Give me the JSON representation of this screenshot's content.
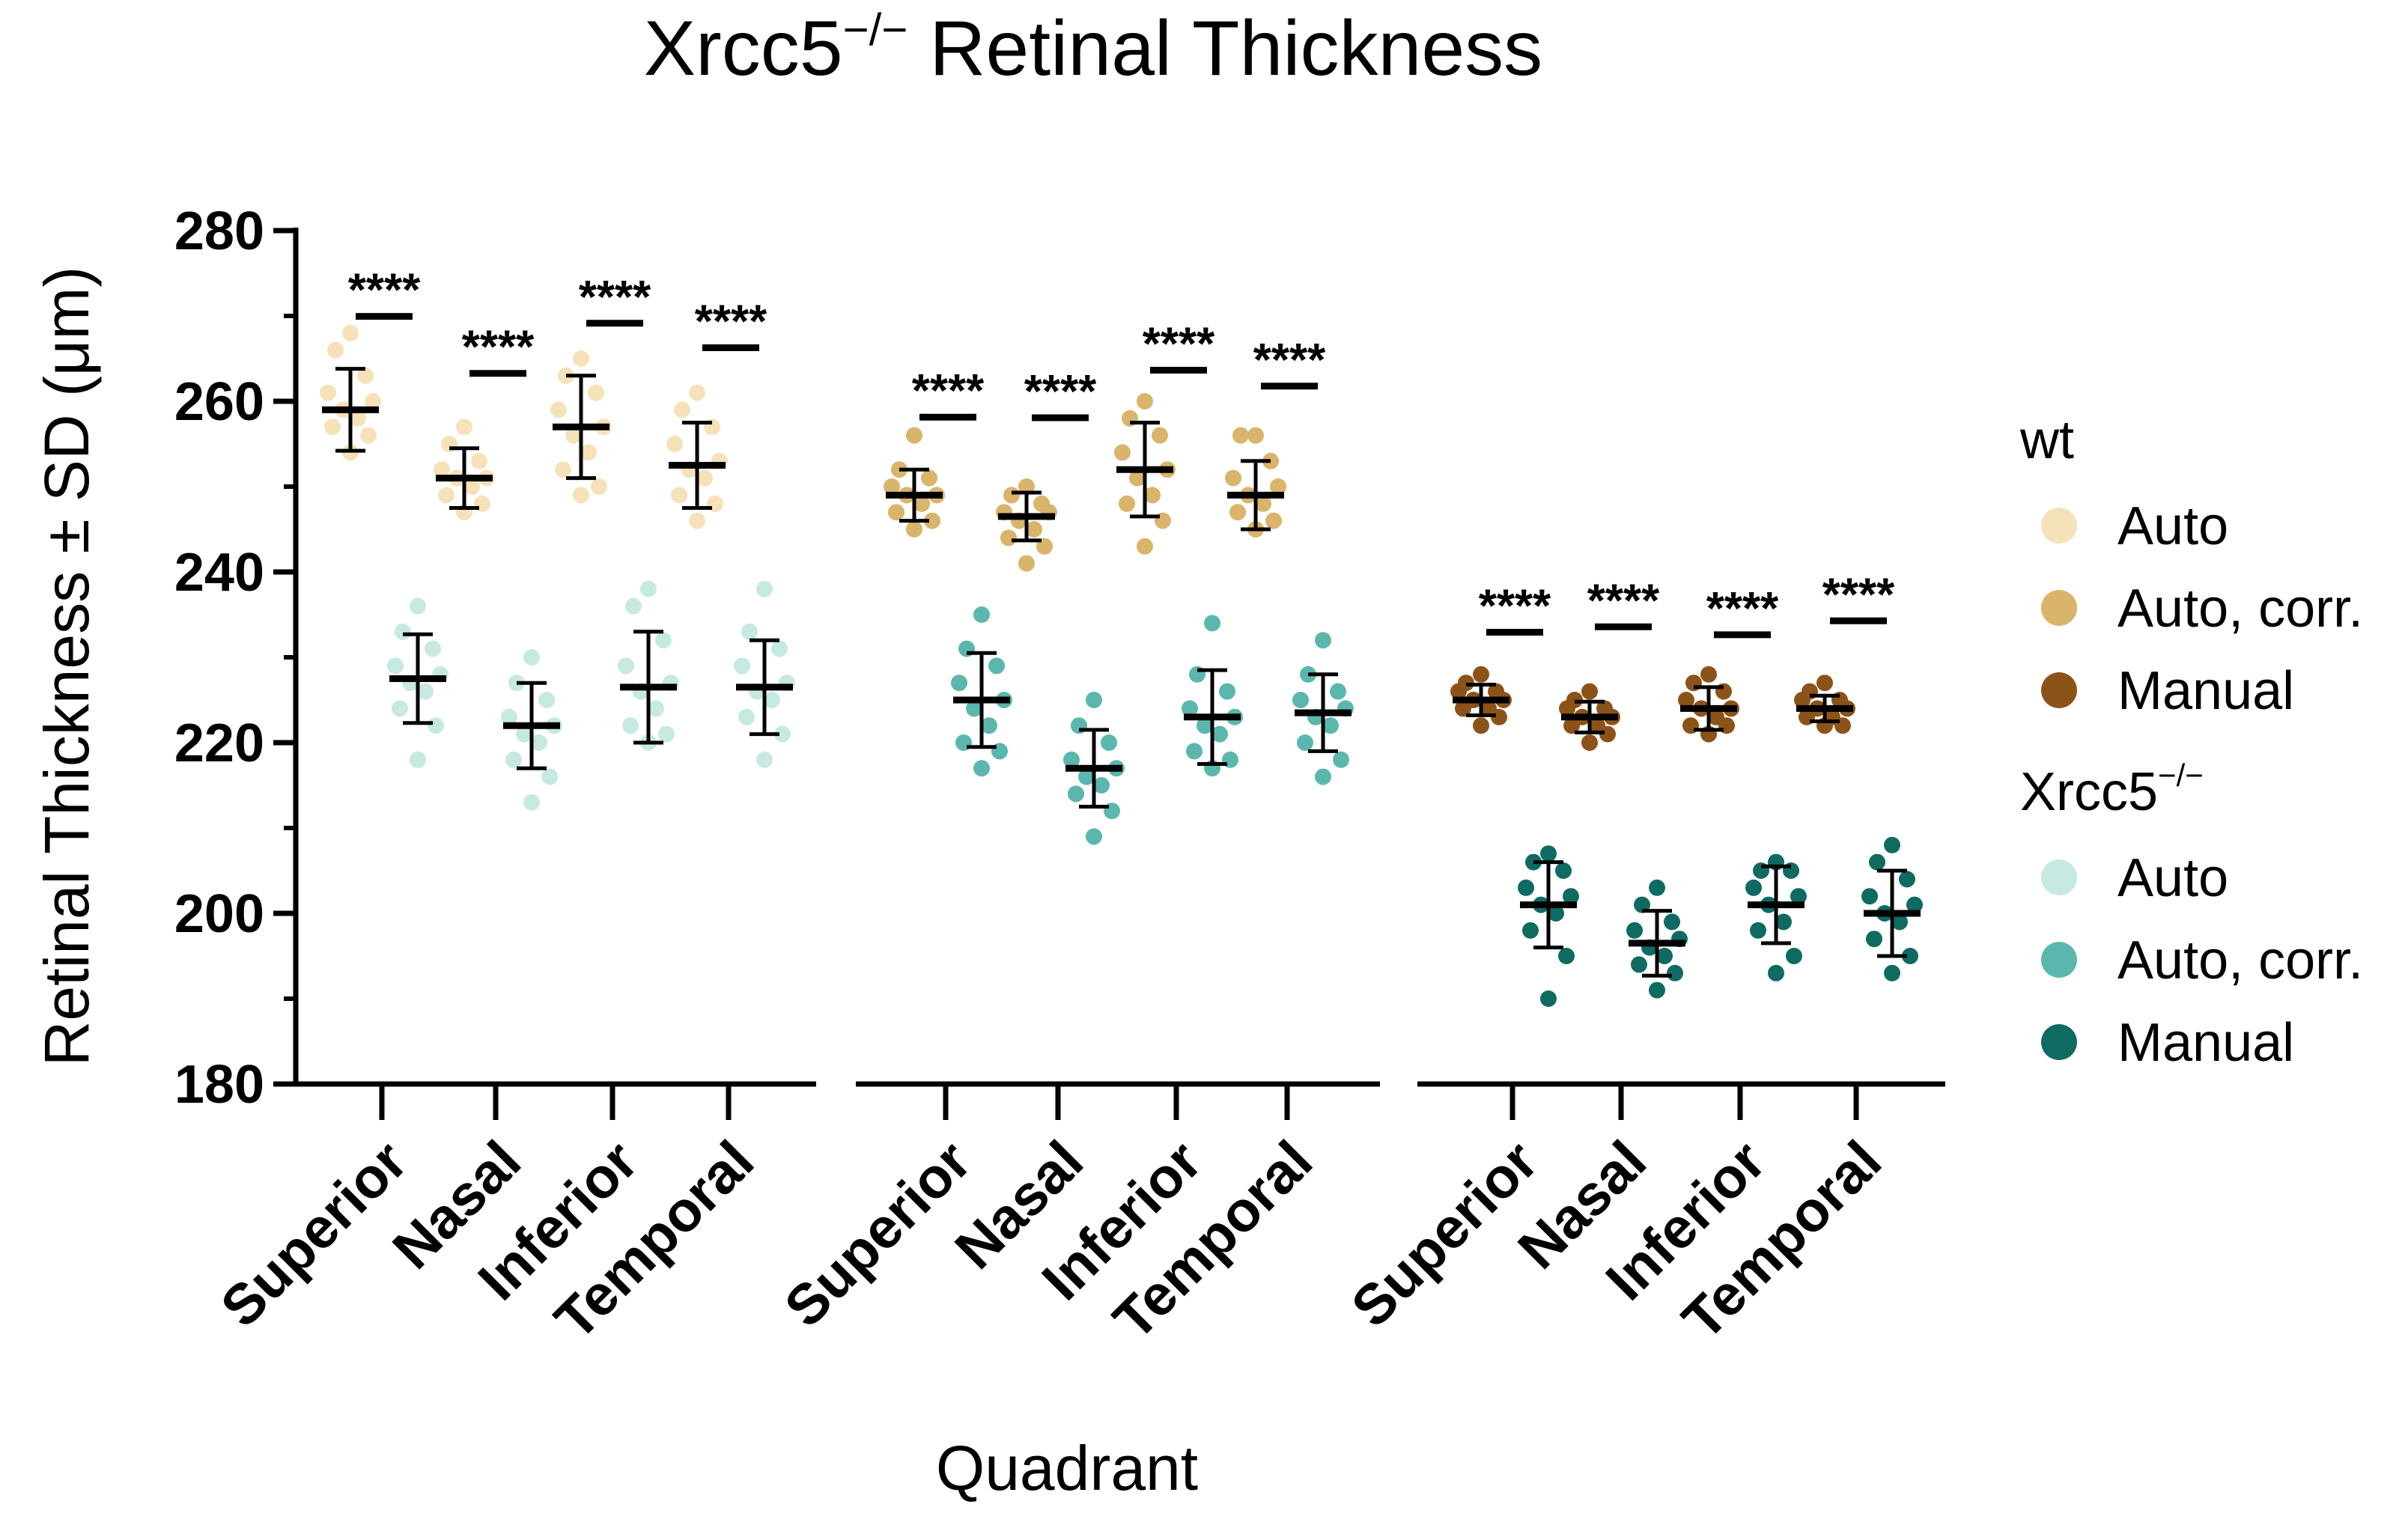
{
  "chart_data": {
    "type": "scatter",
    "title": "Xrcc5",
    "title_superscript": "−/−",
    "title_suffix": " Retinal Thickness",
    "ylabel": "Retinal Thickness ± SD (μm)",
    "xlabel": "Quadrant",
    "ylim": [
      180,
      280
    ],
    "yticks": [
      180,
      200,
      220,
      240,
      260,
      280
    ],
    "quadrants": [
      "Superior",
      "Nasal",
      "Inferior",
      "Temporal"
    ],
    "significance_label": "****",
    "legend": {
      "groups": [
        {
          "title": "wt",
          "superscript": "",
          "entries": [
            {
              "label": "Auto",
              "color": "#F6E2B8"
            },
            {
              "label": "Auto, corr.",
              "color": "#D9B46A"
            },
            {
              "label": "Manual",
              "color": "#8C5318"
            }
          ]
        },
        {
          "title": "Xrcc5",
          "superscript": "−/−",
          "entries": [
            {
              "label": "Auto",
              "color": "#C6E9E1"
            },
            {
              "label": "Auto, corr.",
              "color": "#5BB7AD"
            },
            {
              "label": "Manual",
              "color": "#0F6B62"
            }
          ]
        }
      ]
    },
    "panels": [
      {
        "method": "Auto",
        "wt_color": "#F6E2B8",
        "ko_color": "#C6E9E1",
        "groups": [
          {
            "quadrant": "Superior",
            "wt": {
              "mean": 259,
              "sd": 4.8,
              "points": [
                268,
                266,
                263,
                261,
                260,
                259,
                258,
                257,
                256,
                254
              ]
            },
            "ko": {
              "mean": 227.5,
              "sd": 5.2,
              "points": [
                236,
                233,
                231,
                229,
                228,
                227,
                226,
                224,
                222,
                218
              ]
            }
          },
          {
            "quadrant": "Nasal",
            "wt": {
              "mean": 251,
              "sd": 3.5,
              "points": [
                257,
                255,
                253,
                252,
                251,
                251,
                250,
                249,
                248,
                247
              ]
            },
            "ko": {
              "mean": 222,
              "sd": 5,
              "points": [
                230,
                227,
                225,
                223,
                222,
                221,
                220,
                218,
                216,
                213
              ]
            }
          },
          {
            "quadrant": "Inferior",
            "wt": {
              "mean": 257,
              "sd": 6,
              "points": [
                265,
                263,
                261,
                259,
                257,
                256,
                254,
                252,
                250,
                249
              ]
            },
            "ko": {
              "mean": 226.5,
              "sd": 6.5,
              "points": [
                238,
                236,
                232,
                229,
                227,
                226,
                224,
                222,
                221,
                220
              ]
            }
          },
          {
            "quadrant": "Temporal",
            "wt": {
              "mean": 252.5,
              "sd": 5,
              "points": [
                261,
                259,
                257,
                255,
                253,
                252,
                251,
                249,
                248,
                246
              ]
            },
            "ko": {
              "mean": 226.5,
              "sd": 5.5,
              "points": [
                238,
                233,
                231,
                229,
                227,
                226,
                225,
                223,
                221,
                218
              ]
            }
          }
        ]
      },
      {
        "method": "Auto, corr.",
        "wt_color": "#D9B46A",
        "ko_color": "#5BB7AD",
        "groups": [
          {
            "quadrant": "Superior",
            "wt": {
              "mean": 249,
              "sd": 3,
              "points": [
                256,
                252,
                251,
                250,
                249,
                249,
                248,
                247,
                246,
                245
              ]
            },
            "ko": {
              "mean": 225,
              "sd": 5.5,
              "points": [
                235,
                231,
                229,
                227,
                225,
                224,
                222,
                220,
                219,
                217
              ]
            }
          },
          {
            "quadrant": "Nasal",
            "wt": {
              "mean": 246.5,
              "sd": 2.8,
              "points": [
                250,
                249,
                248,
                247,
                247,
                246,
                245,
                244,
                243,
                241
              ]
            },
            "ko": {
              "mean": 217,
              "sd": 4.5,
              "points": [
                225,
                222,
                220,
                218,
                217,
                216,
                215,
                214,
                212,
                209
              ]
            }
          },
          {
            "quadrant": "Inferior",
            "wt": {
              "mean": 252,
              "sd": 5.5,
              "points": [
                260,
                258,
                256,
                254,
                252,
                251,
                249,
                248,
                246,
                243
              ]
            },
            "ko": {
              "mean": 223,
              "sd": 5.5,
              "points": [
                234,
                228,
                226,
                224,
                223,
                222,
                221,
                219,
                218,
                217
              ]
            }
          },
          {
            "quadrant": "Temporal",
            "wt": {
              "mean": 249,
              "sd": 4,
              "points": [
                256,
                256,
                253,
                251,
                250,
                249,
                248,
                247,
                246,
                245
              ]
            },
            "ko": {
              "mean": 223.5,
              "sd": 4.5,
              "points": [
                232,
                228,
                226,
                225,
                224,
                223,
                222,
                220,
                218,
                216
              ]
            }
          }
        ]
      },
      {
        "method": "Manual",
        "wt_color": "#8C5318",
        "ko_color": "#0F6B62",
        "groups": [
          {
            "quadrant": "Superior",
            "wt": {
              "mean": 225,
              "sd": 1.8,
              "points": [
                228,
                227,
                226,
                226,
                225,
                225,
                224,
                224,
                223,
                222
              ]
            },
            "ko": {
              "mean": 201,
              "sd": 5,
              "points": [
                207,
                206,
                205,
                203,
                202,
                201,
                200,
                198,
                195,
                190
              ]
            }
          },
          {
            "quadrant": "Nasal",
            "wt": {
              "mean": 223,
              "sd": 1.8,
              "points": [
                226,
                225,
                224,
                224,
                223,
                223,
                222,
                222,
                221,
                220
              ]
            },
            "ko": {
              "mean": 196.5,
              "sd": 3.8,
              "points": [
                203,
                201,
                199,
                198,
                197,
                196,
                195,
                194,
                193,
                191
              ]
            }
          },
          {
            "quadrant": "Inferior",
            "wt": {
              "mean": 224,
              "sd": 2.5,
              "points": [
                228,
                227,
                226,
                225,
                224,
                224,
                223,
                222,
                222,
                221
              ]
            },
            "ko": {
              "mean": 201,
              "sd": 4.5,
              "points": [
                206,
                205,
                205,
                203,
                202,
                201,
                199,
                198,
                195,
                193
              ]
            }
          },
          {
            "quadrant": "Temporal",
            "wt": {
              "mean": 224,
              "sd": 1.5,
              "points": [
                227,
                226,
                225,
                225,
                224,
                224,
                223,
                223,
                222,
                222
              ]
            },
            "ko": {
              "mean": 200,
              "sd": 5,
              "points": [
                208,
                206,
                204,
                202,
                201,
                200,
                199,
                197,
                195,
                193
              ]
            }
          }
        ]
      }
    ]
  }
}
